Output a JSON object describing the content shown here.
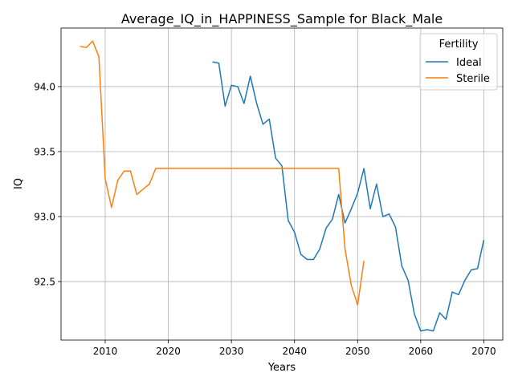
{
  "chart_data": {
    "type": "line",
    "title": "Average_IQ_in_HAPPINESS_Sample for Black_Male",
    "xlabel": "Years",
    "ylabel": "IQ",
    "xlim": [
      2003,
      2073
    ],
    "ylim": [
      92.05,
      94.45
    ],
    "x_ticks": [
      2010,
      2020,
      2030,
      2040,
      2050,
      2060,
      2070
    ],
    "y_ticks": [
      92.5,
      93.0,
      93.5,
      94.0
    ],
    "x_tick_labels": [
      "2010",
      "2020",
      "2030",
      "2040",
      "2050",
      "2060",
      "2070"
    ],
    "y_tick_labels": [
      "92.5",
      "93.0",
      "93.5",
      "94.0"
    ],
    "grid": true,
    "legend": {
      "title": "Fertility",
      "placement": "top-right"
    },
    "series": [
      {
        "name": "Ideal",
        "color": "#1f77b4",
        "x": [
          2027,
          2028,
          2029,
          2030,
          2031,
          2032,
          2033,
          2034,
          2035,
          2036,
          2037,
          2038,
          2039,
          2040,
          2041,
          2042,
          2043,
          2044,
          2045,
          2046,
          2047,
          2048,
          2049,
          2050,
          2051,
          2052,
          2053,
          2054,
          2055,
          2056,
          2057,
          2058,
          2059,
          2060,
          2061,
          2062,
          2063,
          2064,
          2065,
          2066,
          2067,
          2068,
          2069,
          2070
        ],
        "y": [
          94.19,
          94.18,
          93.85,
          94.01,
          94.0,
          93.87,
          94.08,
          93.87,
          93.71,
          93.75,
          93.45,
          93.39,
          92.97,
          92.88,
          92.71,
          92.67,
          92.67,
          92.75,
          92.91,
          92.98,
          93.17,
          92.95,
          93.06,
          93.18,
          93.37,
          93.06,
          93.25,
          93.0,
          93.02,
          92.92,
          92.62,
          92.51,
          92.25,
          92.12,
          92.13,
          92.12,
          92.26,
          92.21,
          92.42,
          92.4,
          92.51,
          92.59,
          92.6,
          92.82
        ]
      },
      {
        "name": "Sterile",
        "color": "#ff7f0e",
        "x": [
          2006,
          2007,
          2008,
          2009,
          2010,
          2011,
          2012,
          2013,
          2014,
          2015,
          2016,
          2017,
          2018,
          2019,
          2020,
          2021,
          2022,
          2023,
          2024,
          2025,
          2026,
          2027,
          2028,
          2029,
          2030,
          2031,
          2032,
          2033,
          2034,
          2035,
          2036,
          2037,
          2038,
          2039,
          2040,
          2041,
          2042,
          2043,
          2044,
          2045,
          2046,
          2047,
          2048,
          2049,
          2050,
          2051
        ],
        "y": [
          94.31,
          94.3,
          94.35,
          94.23,
          93.29,
          93.07,
          93.28,
          93.35,
          93.35,
          93.17,
          93.21,
          93.25,
          93.37,
          93.37,
          93.37,
          93.37,
          93.37,
          93.37,
          93.37,
          93.37,
          93.37,
          93.37,
          93.37,
          93.37,
          93.37,
          93.37,
          93.37,
          93.37,
          93.37,
          93.37,
          93.37,
          93.37,
          93.37,
          93.37,
          93.37,
          93.37,
          93.37,
          93.37,
          93.37,
          93.37,
          93.37,
          93.37,
          92.75,
          92.47,
          92.32,
          92.66
        ]
      }
    ]
  }
}
